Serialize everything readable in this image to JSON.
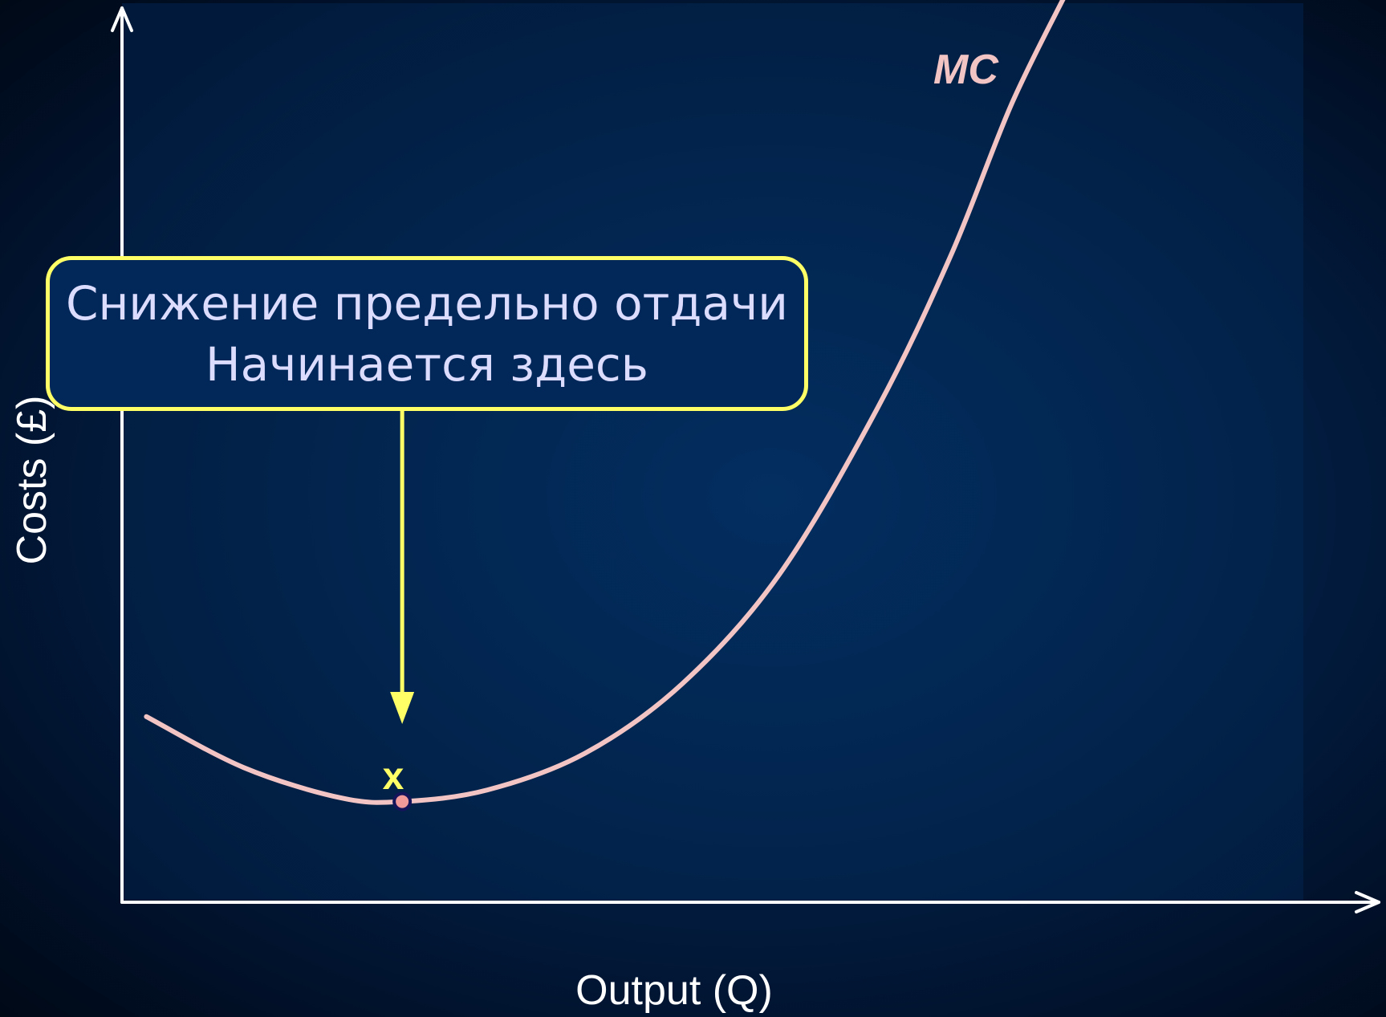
{
  "chart_data": {
    "type": "line",
    "title": "",
    "xlabel": "Output (Q)",
    "ylabel": "Costs (£)",
    "xlim": [
      0,
      100
    ],
    "ylim": [
      0,
      100
    ],
    "grid": false,
    "ticks": "none",
    "series": [
      {
        "name": "MC",
        "color": "#f2c4c4",
        "x": [
          2,
          10,
          18,
          23,
          30,
          38,
          46,
          54,
          62,
          68,
          73,
          77.5
        ],
        "y": [
          20.5,
          14.8,
          11.4,
          11.0,
          12.3,
          16.4,
          24.2,
          36.5,
          55,
          72,
          89,
          101.5
        ]
      }
    ],
    "annotations": [
      {
        "text_lines": [
          "Снижение предельно отдачи",
          "Начинается здесь"
        ],
        "arrow_to": {
          "x": 23,
          "y": 11
        },
        "marker_label": "x",
        "border_color": "#ffff66",
        "text_color": "#dcdcff"
      }
    ],
    "highlight_point": {
      "x": 23,
      "y": 11,
      "fill": "#f29a9a",
      "stroke": "#14145a"
    }
  }
}
